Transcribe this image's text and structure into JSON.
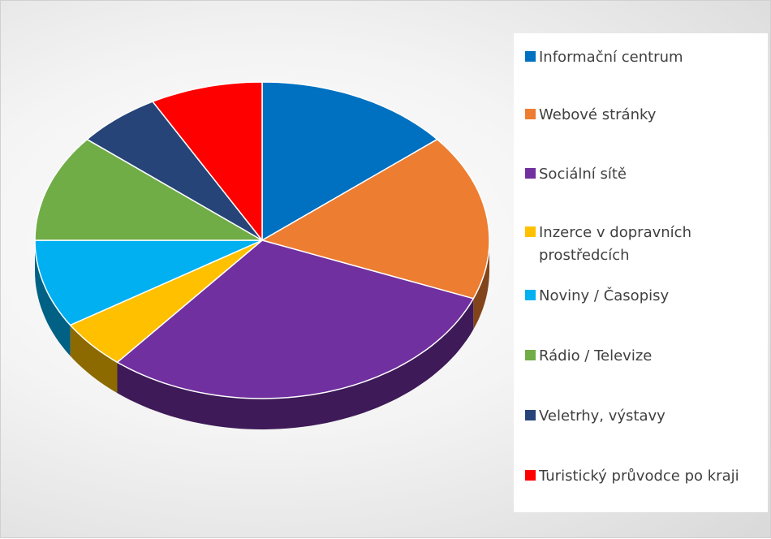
{
  "chart_data": {
    "type": "pie",
    "categories": [
      "Informační centrum",
      "Webové stránky",
      "Sociální sítě",
      "Inzerce v dopravních prostředcích",
      "Noviny / Časopisy",
      "Rádio / Televize",
      "Veletrhy, výstavy",
      "Turistický průvodce po kraji"
    ],
    "values": [
      14,
      17,
      30,
      5,
      9,
      11,
      6,
      8
    ],
    "colors": [
      "#0070c0",
      "#ed7d31",
      "#7030a0",
      "#ffc000",
      "#00b0f0",
      "#70ad47",
      "#264478",
      "#ff0000"
    ],
    "legend": "right"
  }
}
